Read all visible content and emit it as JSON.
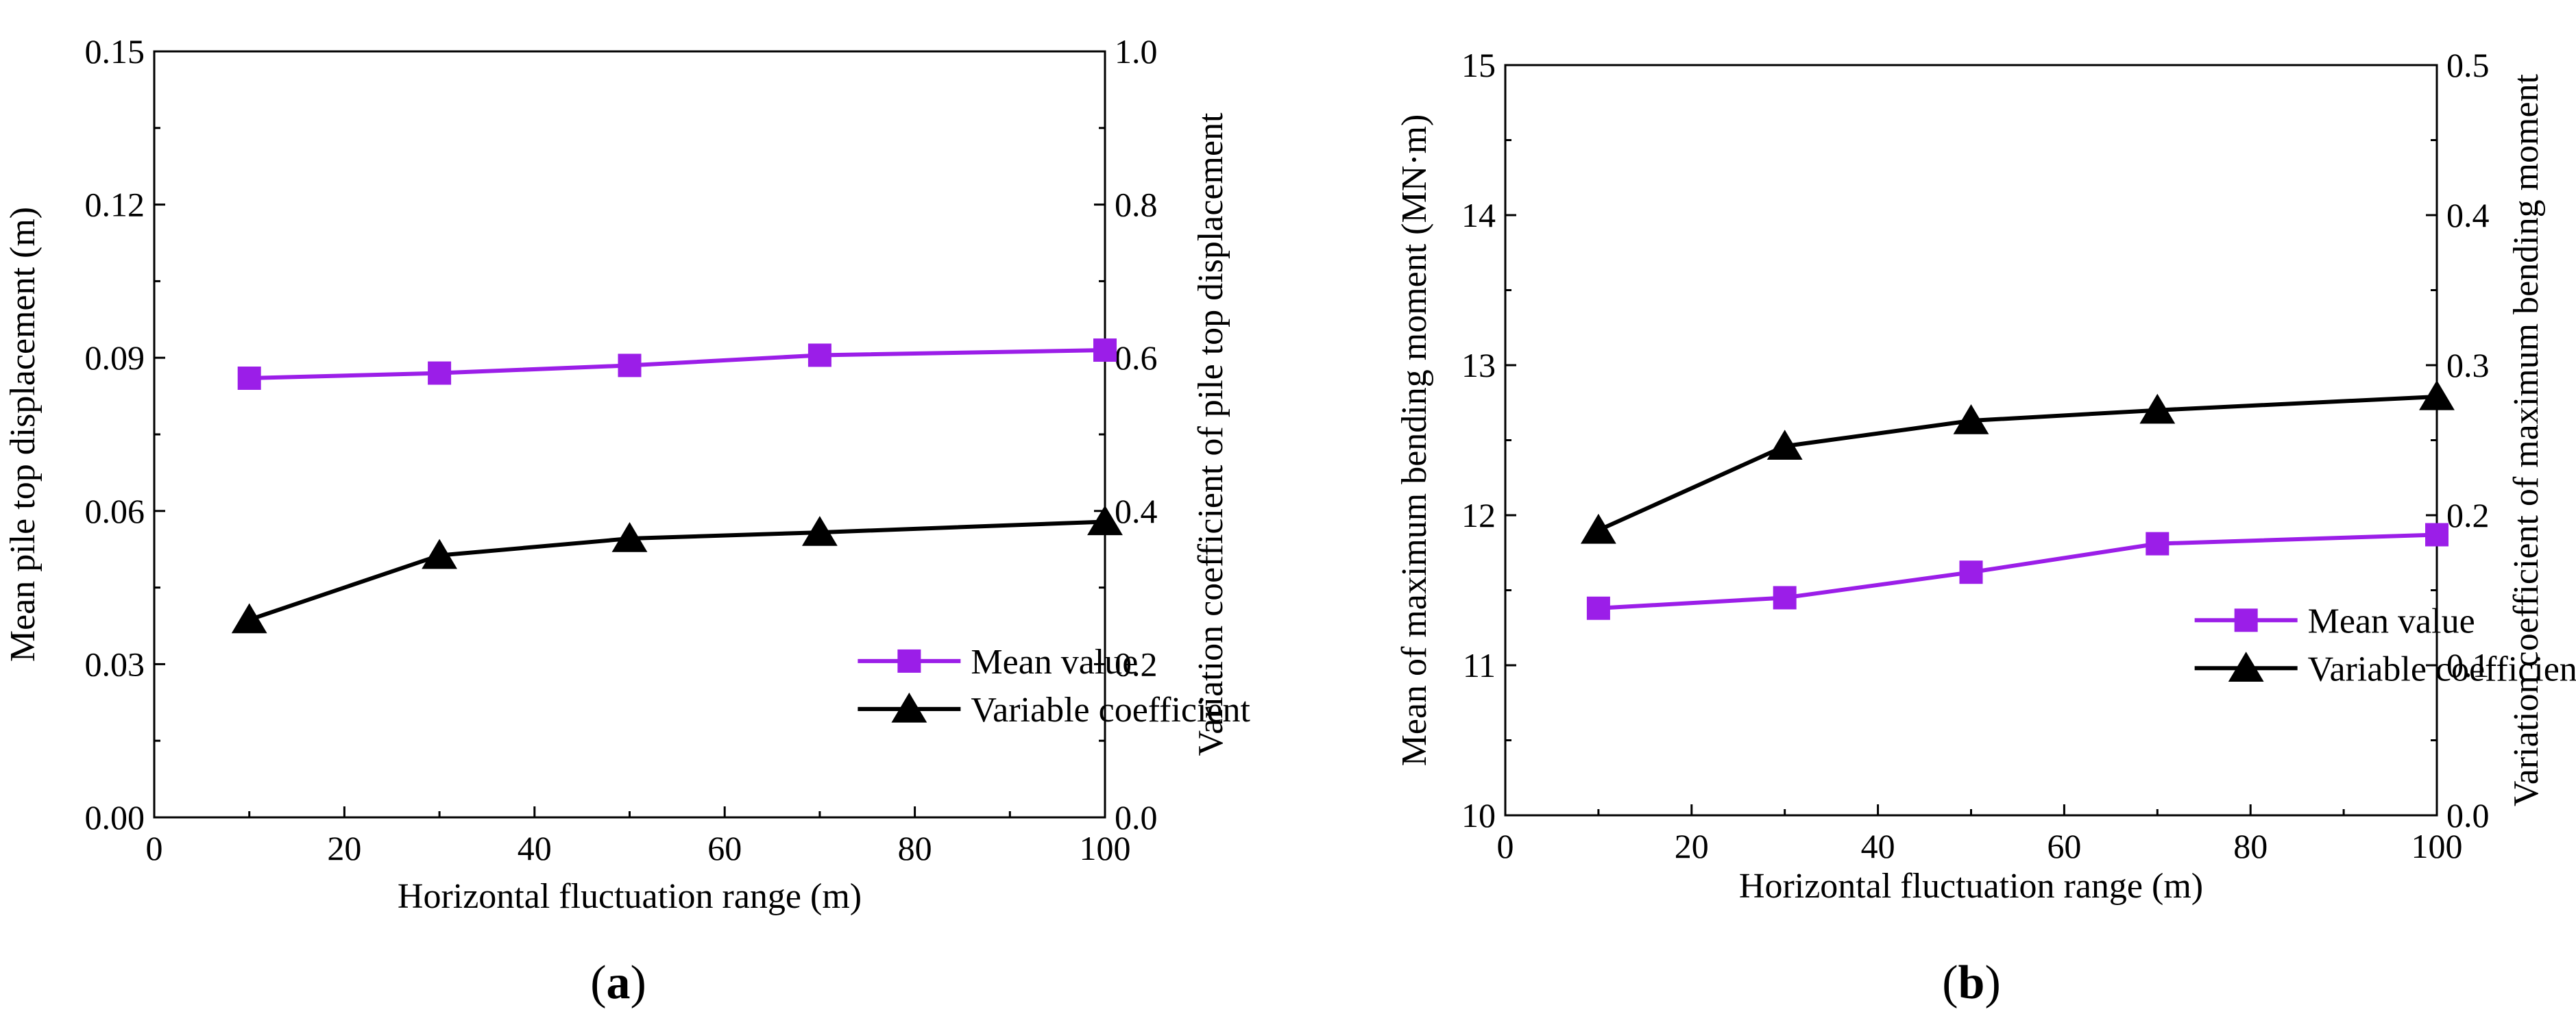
{
  "figure": {
    "panels": [
      {
        "label_open": "(",
        "label_letter": "a",
        "label_close": ")"
      },
      {
        "label_open": "(",
        "label_letter": "b",
        "label_close": ")"
      }
    ]
  },
  "colors": {
    "mean_series": "#9b1ee8",
    "variable_series": "#000000",
    "axis": "#000000"
  },
  "chart_data": [
    {
      "type": "line",
      "panel": "a",
      "xlabel": "Horizontal fluctuation range (m)",
      "ylabel_left": "Mean pile top displacement (m)",
      "ylabel_right": "Variation coefficient of pile top displacement",
      "xlim": [
        0,
        100
      ],
      "xticks": [
        0,
        20,
        40,
        60,
        80,
        100
      ],
      "xtick_labels": [
        "0",
        "20",
        "40",
        "60",
        "80",
        "100"
      ],
      "ylim_left": [
        0,
        0.15
      ],
      "yticks_left": [
        0,
        0.03,
        0.06,
        0.09,
        0.12,
        0.15
      ],
      "ytick_labels_left": [
        "0.00",
        "0.03",
        "0.06",
        "0.09",
        "0.12",
        "0.15"
      ],
      "ylim_right": [
        0,
        1.0
      ],
      "yticks_right": [
        0,
        0.2,
        0.4,
        0.6,
        0.8,
        1.0
      ],
      "ytick_labels_right": [
        "0.0",
        "0.2",
        "0.4",
        "0.6",
        "0.8",
        "1.0"
      ],
      "x": [
        10,
        30,
        50,
        70,
        100
      ],
      "series": [
        {
          "name": "Mean value",
          "axis": "left",
          "marker": "square",
          "color": "#9b1ee8",
          "values": [
            0.086,
            0.087,
            0.0885,
            0.0905,
            0.0915
          ]
        },
        {
          "name": "Variable coefficient",
          "axis": "right",
          "marker": "triangle",
          "color": "#000000",
          "values": [
            0.258,
            0.342,
            0.364,
            0.372,
            0.386
          ]
        }
      ],
      "legend_position": "lower-right",
      "grid": false
    },
    {
      "type": "line",
      "panel": "b",
      "xlabel": "Horizontal fluctuation range (m)",
      "ylabel_left": "Mean of maximum bending moment (MN·m)",
      "ylabel_right": "Variation coefficient of maximum bending moment",
      "xlim": [
        0,
        100
      ],
      "xticks": [
        0,
        20,
        40,
        60,
        80,
        100
      ],
      "xtick_labels": [
        "0",
        "20",
        "40",
        "60",
        "80",
        "100"
      ],
      "ylim_left": [
        10,
        15
      ],
      "yticks_left": [
        10,
        11,
        12,
        13,
        14,
        15
      ],
      "ytick_labels_left": [
        "10",
        "11",
        "12",
        "13",
        "14",
        "15"
      ],
      "ylim_right": [
        0,
        0.5
      ],
      "yticks_right": [
        0,
        0.1,
        0.2,
        0.3,
        0.4,
        0.5
      ],
      "ytick_labels_right": [
        "0.0",
        "0.1",
        "0.2",
        "0.3",
        "0.4",
        "0.5"
      ],
      "x": [
        10,
        30,
        50,
        70,
        100
      ],
      "series": [
        {
          "name": "Mean value",
          "axis": "left",
          "marker": "square",
          "color": "#9b1ee8",
          "values": [
            11.38,
            11.45,
            11.62,
            11.81,
            11.87
          ]
        },
        {
          "name": "Variable coefficient",
          "axis": "right",
          "marker": "triangle",
          "color": "#000000",
          "values": [
            0.19,
            0.246,
            0.263,
            0.27,
            0.279
          ]
        }
      ],
      "legend_position": "lower-right",
      "grid": false
    }
  ]
}
